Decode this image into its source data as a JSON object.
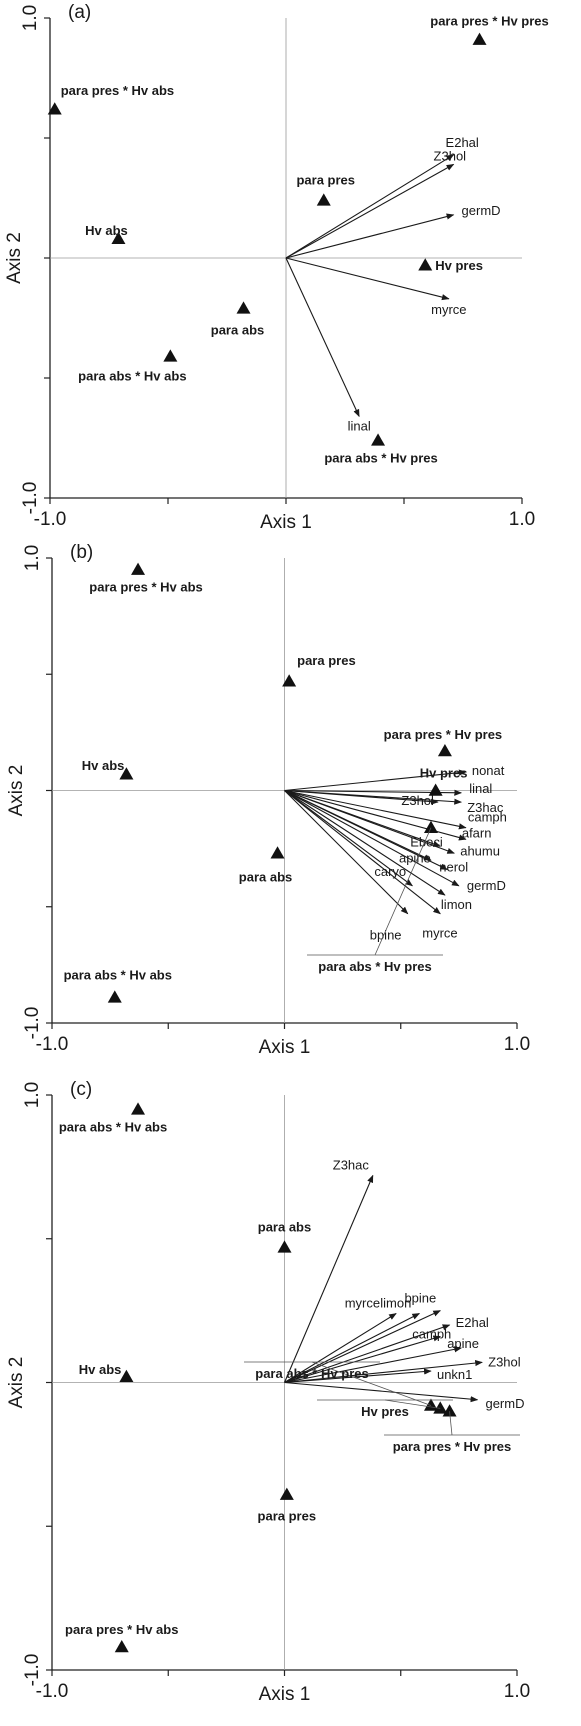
{
  "chart_data": [
    {
      "type": "scatter",
      "panel_label": "(a)",
      "xlabel": "Axis 1",
      "ylabel": "Axis 2",
      "xlim": [
        -1.0,
        1.0
      ],
      "ylim": [
        -1.0,
        1.0
      ],
      "x_ticks": [
        "-1.0",
        "1.0"
      ],
      "y_ticks": [
        "1.0",
        "-1.0"
      ],
      "sites": [
        {
          "label": "para pres * Hv pres",
          "x": 0.82,
          "y": 0.91
        },
        {
          "label": "para pres * Hv abs",
          "x": -0.98,
          "y": 0.62
        },
        {
          "label": "para pres",
          "x": 0.16,
          "y": 0.24
        },
        {
          "label": "Hv abs",
          "x": -0.71,
          "y": 0.08
        },
        {
          "label": "Hv pres",
          "x": 0.59,
          "y": -0.03
        },
        {
          "label": "para abs",
          "x": -0.18,
          "y": -0.21
        },
        {
          "label": "para abs * Hv abs",
          "x": -0.49,
          "y": -0.41
        },
        {
          "label": "para abs * Hv pres",
          "x": 0.39,
          "y": -0.76
        }
      ],
      "vectors": [
        {
          "label": "E2hal",
          "x": 0.71,
          "y": 0.43
        },
        {
          "label": "Z3hol",
          "x": 0.71,
          "y": 0.39
        },
        {
          "label": "germD",
          "x": 0.71,
          "y": 0.18
        },
        {
          "label": "myrce",
          "x": 0.69,
          "y": -0.17
        },
        {
          "label": "linal",
          "x": 0.31,
          "y": -0.66
        }
      ]
    },
    {
      "type": "scatter",
      "panel_label": "(b)",
      "xlabel": "Axis 1",
      "ylabel": "Axis 2",
      "xlim": [
        -1.0,
        1.0
      ],
      "ylim": [
        -1.0,
        1.0
      ],
      "x_ticks": [
        "-1.0",
        "1.0"
      ],
      "y_ticks": [
        "1.0",
        "-1.0"
      ],
      "sites": [
        {
          "label": "para pres * Hv abs",
          "x": -0.63,
          "y": 0.95
        },
        {
          "label": "para pres",
          "x": 0.02,
          "y": 0.47
        },
        {
          "label": "para pres * Hv pres",
          "x": 0.69,
          "y": 0.17
        },
        {
          "label": "Hv abs",
          "x": -0.68,
          "y": 0.07
        },
        {
          "label": "Hv pres",
          "x": 0.65,
          "y": 0.0
        },
        {
          "label": "para abs",
          "x": -0.03,
          "y": -0.27
        },
        {
          "label": "para abs * Hv abs",
          "x": -0.73,
          "y": -0.89
        },
        {
          "label": "para abs * Hv pres",
          "x": 0.63,
          "y": -0.16
        }
      ],
      "vectors": [
        {
          "label": "nonat",
          "x": 0.78,
          "y": 0.08
        },
        {
          "label": "linal",
          "x": 0.76,
          "y": -0.01
        },
        {
          "label": "Z3hac",
          "x": 0.76,
          "y": -0.05
        },
        {
          "label": "Z3hol",
          "x": 0.66,
          "y": -0.05
        },
        {
          "label": "camph",
          "x": 0.78,
          "y": -0.16
        },
        {
          "label": "afarn",
          "x": 0.78,
          "y": -0.21
        },
        {
          "label": "Eboci",
          "x": 0.67,
          "y": -0.24
        },
        {
          "label": "ahumu",
          "x": 0.73,
          "y": -0.27
        },
        {
          "label": "apine",
          "x": 0.63,
          "y": -0.3
        },
        {
          "label": "nerol",
          "x": 0.7,
          "y": -0.34
        },
        {
          "label": "caryo",
          "x": 0.55,
          "y": -0.41
        },
        {
          "label": "germD",
          "x": 0.75,
          "y": -0.41
        },
        {
          "label": "limon",
          "x": 0.69,
          "y": -0.45
        },
        {
          "label": "bpine",
          "x": 0.53,
          "y": -0.53
        },
        {
          "label": "myrce",
          "x": 0.67,
          "y": -0.53
        }
      ]
    },
    {
      "type": "scatter",
      "panel_label": "(c)",
      "xlabel": "Axis 1",
      "ylabel": "Axis 2",
      "xlim": [
        -1.0,
        1.0
      ],
      "ylim": [
        -1.0,
        1.0
      ],
      "x_ticks": [
        "-1.0",
        "1.0"
      ],
      "y_ticks": [
        "1.0",
        "-1.0"
      ],
      "sites": [
        {
          "label": "para abs * Hv abs",
          "x": -0.63,
          "y": 0.95
        },
        {
          "label": "para abs",
          "x": 0.0,
          "y": 0.47
        },
        {
          "label": "Hv abs",
          "x": -0.68,
          "y": 0.02
        },
        {
          "label": "para abs * Hv pres",
          "x": 0.63,
          "y": -0.08
        },
        {
          "label": "Hv pres",
          "x": 0.67,
          "y": -0.09
        },
        {
          "label": "para pres * Hv pres",
          "x": 0.71,
          "y": -0.1
        },
        {
          "label": "para pres",
          "x": 0.01,
          "y": -0.39
        },
        {
          "label": "para pres * Hv abs",
          "x": -0.7,
          "y": -0.92
        }
      ],
      "vectors": [
        {
          "label": "Z3hac",
          "x": 0.38,
          "y": 0.72
        },
        {
          "label": "myrce",
          "x": 0.48,
          "y": 0.24
        },
        {
          "label": "limon",
          "x": 0.58,
          "y": 0.24
        },
        {
          "label": "bpine",
          "x": 0.67,
          "y": 0.25
        },
        {
          "label": "E2hal",
          "x": 0.71,
          "y": 0.2
        },
        {
          "label": "camph",
          "x": 0.67,
          "y": 0.16
        },
        {
          "label": "apine",
          "x": 0.76,
          "y": 0.12
        },
        {
          "label": "Z3hol",
          "x": 0.85,
          "y": 0.07
        },
        {
          "label": "unkn1",
          "x": 0.63,
          "y": 0.04
        },
        {
          "label": "germD",
          "x": 0.83,
          "y": -0.06
        }
      ]
    }
  ]
}
